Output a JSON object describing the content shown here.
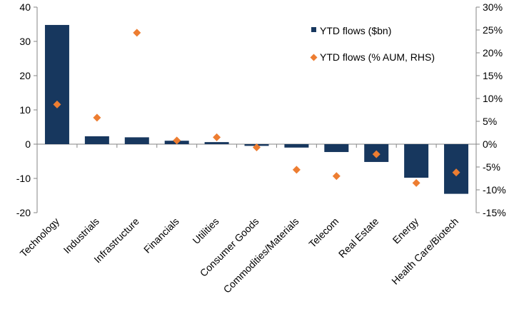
{
  "chart_data": {
    "type": "bar",
    "title": "",
    "xlabel": "",
    "ylabel": "",
    "y2label": "",
    "grid": false,
    "legend_position": "top-right",
    "categories": [
      "Technology",
      "Industrials",
      "Infrastructure",
      "Financials",
      "Utilities",
      "Consumer Goods",
      "Commodities/Materials",
      "Telecom",
      "Real Estate",
      "Energy",
      "Health Care/Biotech"
    ],
    "ylim": [
      -20,
      40
    ],
    "yticks": [
      -20,
      -10,
      0,
      10,
      20,
      30,
      40
    ],
    "y2lim": [
      -15,
      30
    ],
    "y2ticks": [
      "-15%",
      "-10%",
      "-5%",
      "0%",
      "5%",
      "10%",
      "15%",
      "20%",
      "25%",
      "30%"
    ],
    "series": [
      {
        "name": "YTD flows ($bn)",
        "kind": "bar",
        "axis": "left",
        "color": "#17375e",
        "values": [
          34.8,
          2.3,
          2.0,
          1.0,
          0.6,
          -0.5,
          -1.0,
          -2.3,
          -5.2,
          -9.8,
          -14.5
        ]
      },
      {
        "name": "YTD flows (% AUM, RHS)",
        "kind": "scatter",
        "axis": "right",
        "marker": "diamond",
        "color": "#ed7d31",
        "values": [
          8.7,
          5.8,
          24.4,
          0.8,
          1.5,
          -0.7,
          -5.6,
          -7.0,
          -2.2,
          -8.5,
          -6.2
        ]
      }
    ]
  }
}
